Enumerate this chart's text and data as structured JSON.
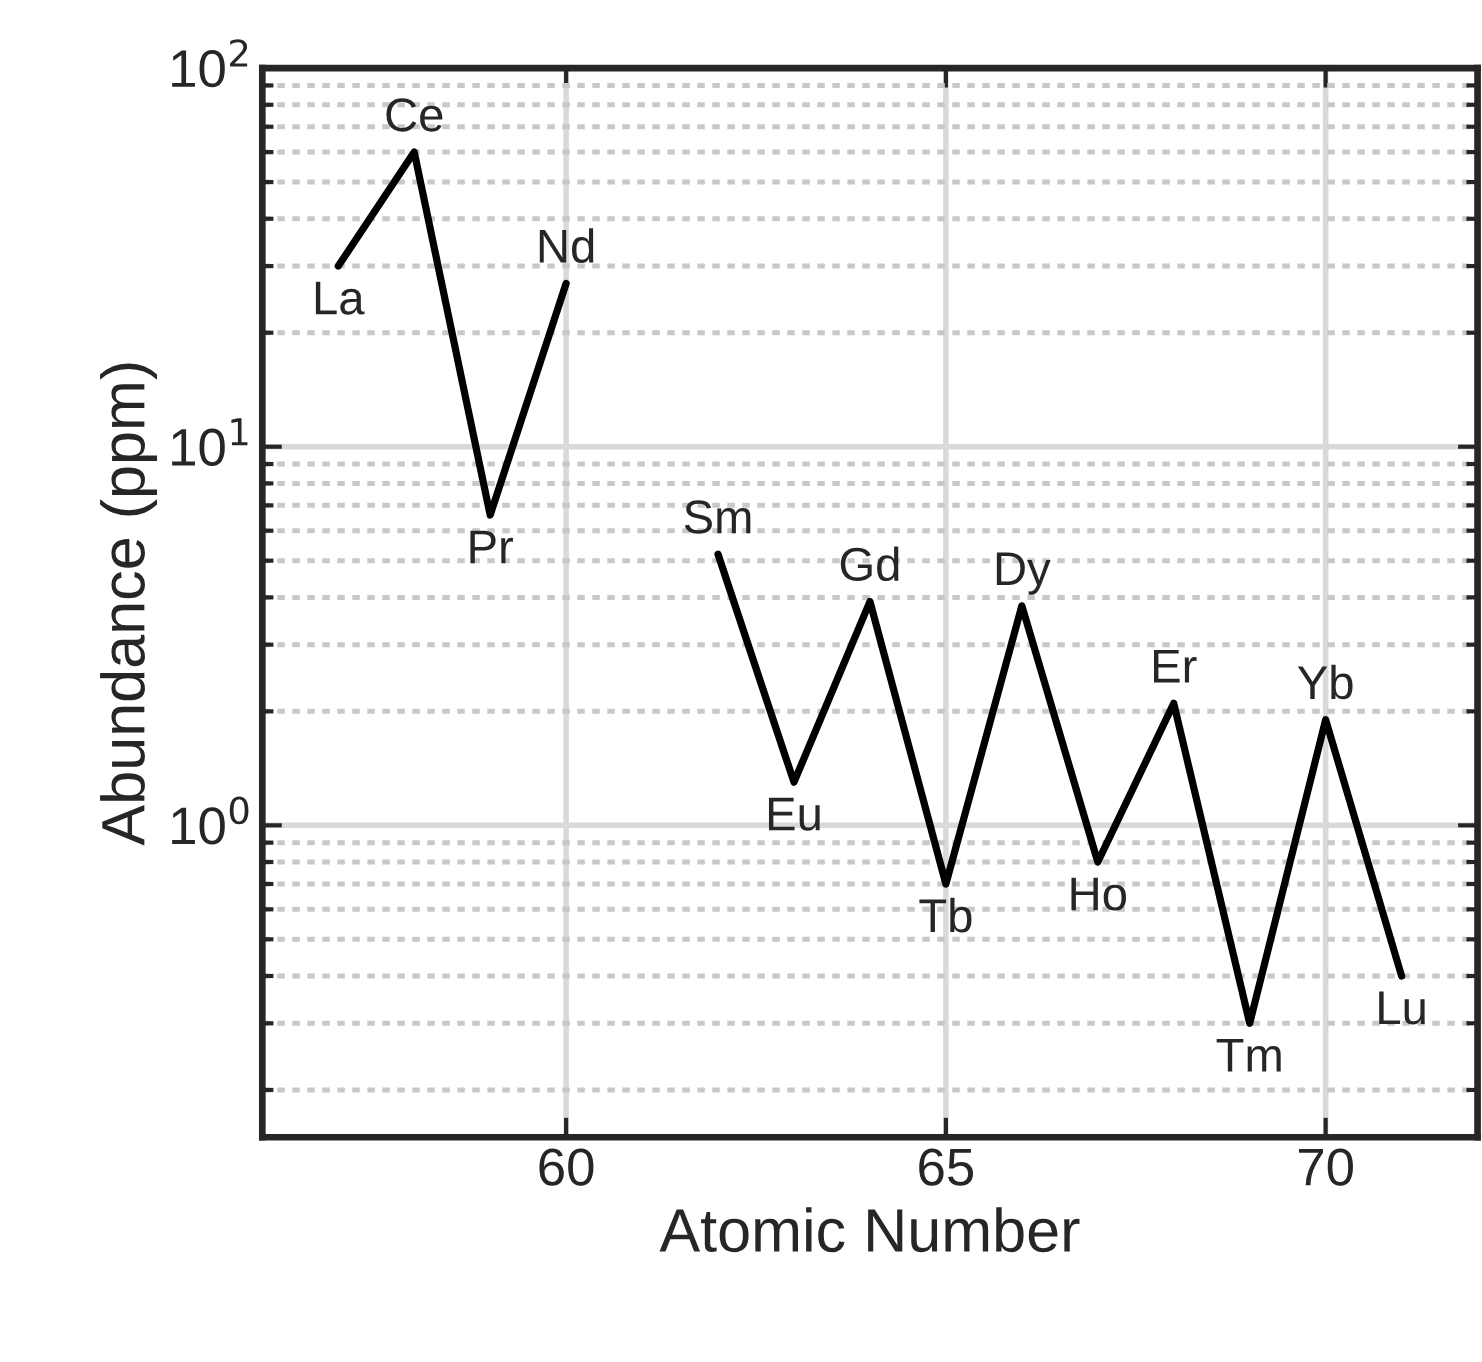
{
  "chart_data": {
    "type": "line",
    "xlabel": "Atomic Number",
    "ylabel": "Abundance (ppm)",
    "x": [
      57,
      58,
      59,
      60,
      61,
      62,
      63,
      64,
      65,
      66,
      67,
      68,
      69,
      70,
      71
    ],
    "series": [
      {
        "color": "#000000",
        "values": [
          30,
          60,
          6.6,
          27,
          null,
          5.2,
          1.3,
          3.9,
          0.7,
          3.8,
          0.8,
          2.1,
          0.3,
          1.9,
          0.4
        ]
      }
    ],
    "annotations": [
      {
        "text": "La",
        "x": 57,
        "y": 30
      },
      {
        "text": "Ce",
        "x": 58,
        "y": 60
      },
      {
        "text": "Pr",
        "x": 59,
        "y": 6.6
      },
      {
        "text": "Nd",
        "x": 60,
        "y": 27
      },
      {
        "text": "Sm",
        "x": 62,
        "y": 5.2
      },
      {
        "text": "Eu",
        "x": 63,
        "y": 1.3
      },
      {
        "text": "Gd",
        "x": 64,
        "y": 3.9
      },
      {
        "text": "Tb",
        "x": 65,
        "y": 0.7
      },
      {
        "text": "Dy",
        "x": 66,
        "y": 3.8
      },
      {
        "text": "Ho",
        "x": 67,
        "y": 0.8
      },
      {
        "text": "Er",
        "x": 68,
        "y": 2.1
      },
      {
        "text": "Tm",
        "x": 69,
        "y": 0.3
      },
      {
        "text": "Yb",
        "x": 70,
        "y": 1.9
      },
      {
        "text": "Lu",
        "x": 71,
        "y": 0.4
      }
    ],
    "log": "y",
    "xlim": [
      56,
      72
    ],
    "xticks": [
      60,
      65,
      70
    ],
    "ylim": [
      0.15,
      100
    ],
    "yticks": [
      {
        "value": 1,
        "label": "10$^{0}$"
      },
      {
        "value": 10,
        "label": "10$^{1}$"
      },
      {
        "value": 100,
        "label": "10$^{2}$"
      }
    ],
    "grid": true,
    "marker": "none",
    "line_style": "solid",
    "legend": false
  }
}
